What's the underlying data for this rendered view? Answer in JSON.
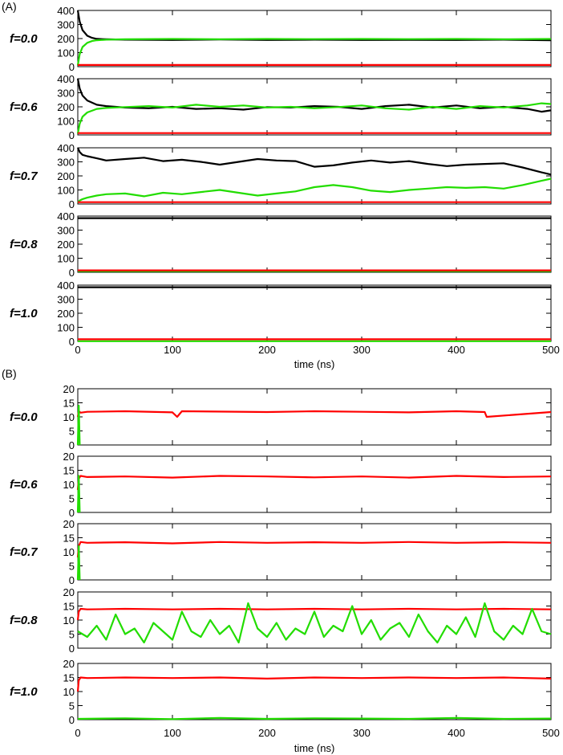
{
  "figure": {
    "panels": [
      {
        "label": "(A)"
      },
      {
        "label": "(B)"
      }
    ]
  },
  "colors": {
    "black_series": "#000000",
    "green_series": "#22dd00",
    "red_series": "#ff0000"
  },
  "chart_data": [
    {
      "panel": "(A)",
      "type": "line",
      "xlabel": "time (ns)",
      "xlim": [
        0,
        500
      ],
      "xticks": [
        0,
        100,
        200,
        300,
        400,
        500
      ],
      "ylim": [
        0,
        400
      ],
      "yticks": [
        0,
        100,
        200,
        300,
        400
      ],
      "grid": false,
      "rows": [
        {
          "label": "f=0.0",
          "series": [
            {
              "color": "black",
              "x": [
                0,
                2,
                5,
                10,
                15,
                20,
                30,
                50,
                100,
                150,
                200,
                250,
                300,
                350,
                400,
                450,
                500
              ],
              "y": [
                400,
                320,
                260,
                220,
                205,
                198,
                195,
                192,
                190,
                193,
                190,
                192,
                190,
                191,
                190,
                192,
                188
              ]
            },
            {
              "color": "green",
              "x": [
                0,
                2,
                5,
                10,
                15,
                20,
                30,
                50,
                100,
                150,
                200,
                250,
                300,
                350,
                400,
                450,
                500
              ],
              "y": [
                10,
                90,
                140,
                170,
                182,
                188,
                192,
                195,
                197,
                195,
                197,
                196,
                197,
                196,
                197,
                195,
                197
              ]
            },
            {
              "color": "red",
              "x": [
                0,
                500
              ],
              "y": [
                12,
                12
              ]
            }
          ]
        },
        {
          "label": "f=0.6",
          "series": [
            {
              "color": "black",
              "x": [
                0,
                2,
                5,
                10,
                20,
                30,
                50,
                75,
                100,
                125,
                150,
                175,
                200,
                225,
                250,
                275,
                300,
                325,
                350,
                375,
                400,
                425,
                450,
                475,
                490,
                500
              ],
              "y": [
                400,
                330,
                280,
                245,
                215,
                205,
                195,
                190,
                200,
                185,
                190,
                180,
                198,
                195,
                205,
                200,
                185,
                205,
                215,
                195,
                210,
                190,
                200,
                185,
                165,
                175
              ]
            },
            {
              "color": "green",
              "x": [
                0,
                2,
                5,
                10,
                20,
                30,
                50,
                75,
                100,
                125,
                150,
                175,
                200,
                225,
                250,
                275,
                300,
                325,
                350,
                375,
                400,
                425,
                450,
                475,
                490,
                500
              ],
              "y": [
                10,
                80,
                130,
                160,
                185,
                192,
                198,
                205,
                195,
                215,
                200,
                210,
                195,
                200,
                190,
                198,
                210,
                190,
                180,
                200,
                185,
                205,
                195,
                210,
                225,
                220
              ]
            },
            {
              "color": "red",
              "x": [
                0,
                500
              ],
              "y": [
                13,
                13
              ]
            }
          ]
        },
        {
          "label": "f=0.7",
          "series": [
            {
              "color": "black",
              "x": [
                0,
                2,
                5,
                10,
                20,
                30,
                50,
                70,
                90,
                110,
                130,
                150,
                170,
                190,
                210,
                230,
                250,
                270,
                290,
                310,
                330,
                350,
                370,
                390,
                410,
                430,
                450,
                470,
                490,
                500
              ],
              "y": [
                400,
                370,
                350,
                340,
                325,
                310,
                320,
                330,
                305,
                315,
                300,
                280,
                300,
                320,
                310,
                305,
                265,
                275,
                295,
                310,
                295,
                305,
                285,
                270,
                280,
                285,
                290,
                260,
                225,
                210
              ]
            },
            {
              "color": "green",
              "x": [
                0,
                2,
                5,
                10,
                20,
                30,
                50,
                70,
                90,
                110,
                130,
                150,
                170,
                190,
                210,
                230,
                250,
                270,
                290,
                310,
                330,
                350,
                370,
                390,
                410,
                430,
                450,
                470,
                490,
                500
              ],
              "y": [
                10,
                25,
                35,
                45,
                60,
                70,
                75,
                55,
                80,
                70,
                85,
                100,
                80,
                60,
                75,
                90,
                120,
                135,
                120,
                95,
                85,
                100,
                110,
                120,
                115,
                120,
                110,
                135,
                165,
                180
              ]
            },
            {
              "color": "red",
              "x": [
                0,
                500
              ],
              "y": [
                13,
                13
              ]
            }
          ]
        },
        {
          "label": "f=0.8",
          "series": [
            {
              "color": "black",
              "x": [
                0,
                500
              ],
              "y": [
                385,
                385
              ]
            },
            {
              "color": "green",
              "x": [
                0,
                500
              ],
              "y": [
                8,
                8
              ]
            },
            {
              "color": "red",
              "x": [
                0,
                500
              ],
              "y": [
                14,
                14
              ]
            }
          ]
        },
        {
          "label": "f=1.0",
          "series": [
            {
              "color": "black",
              "x": [
                0,
                500
              ],
              "y": [
                385,
                385
              ]
            },
            {
              "color": "green",
              "x": [
                0,
                500
              ],
              "y": [
                1,
                1
              ]
            },
            {
              "color": "red",
              "x": [
                0,
                500
              ],
              "y": [
                15,
                15
              ]
            }
          ]
        }
      ]
    },
    {
      "panel": "(B)",
      "type": "line",
      "xlabel": "time (ns)",
      "xlim": [
        0,
        500
      ],
      "xticks": [
        0,
        100,
        200,
        300,
        400,
        500
      ],
      "ylim": [
        0,
        20
      ],
      "yticks": [
        0,
        5,
        10,
        15,
        20
      ],
      "grid": false,
      "rows": [
        {
          "label": "f=0.0",
          "series": [
            {
              "color": "red",
              "x": [
                0,
                1,
                3,
                10,
                50,
                100,
                105,
                110,
                200,
                250,
                300,
                350,
                400,
                430,
                432,
                500
              ],
              "y": [
                10,
                12,
                11.5,
                11.8,
                12,
                11.6,
                10,
                12,
                11.7,
                12,
                11.8,
                11.6,
                12,
                11.7,
                10,
                11.7
              ]
            },
            {
              "color": "green",
              "x": [
                0,
                1,
                2
              ],
              "y": [
                0,
                14,
                0
              ]
            }
          ]
        },
        {
          "label": "f=0.6",
          "series": [
            {
              "color": "red",
              "x": [
                0,
                1,
                3,
                10,
                50,
                100,
                150,
                200,
                250,
                300,
                350,
                400,
                450,
                500
              ],
              "y": [
                8,
                12,
                13,
                12.6,
                12.8,
                12.4,
                13,
                12.8,
                12.5,
                12.8,
                12.4,
                13,
                12.6,
                12.8
              ]
            },
            {
              "color": "green",
              "x": [
                0,
                1,
                2
              ],
              "y": [
                0,
                13,
                0
              ]
            }
          ]
        },
        {
          "label": "f=0.7",
          "series": [
            {
              "color": "red",
              "x": [
                0,
                1,
                3,
                10,
                50,
                100,
                150,
                200,
                250,
                300,
                350,
                400,
                450,
                500
              ],
              "y": [
                8,
                12,
                13.5,
                13.2,
                13.4,
                13,
                13.5,
                13.2,
                13.4,
                13.2,
                13.5,
                13.2,
                13.4,
                13.2
              ]
            },
            {
              "color": "green",
              "x": [
                0,
                1,
                2
              ],
              "y": [
                0,
                12,
                0
              ]
            }
          ]
        },
        {
          "label": "f=0.8",
          "series": [
            {
              "color": "red",
              "x": [
                0,
                1,
                3,
                10,
                50,
                100,
                150,
                200,
                250,
                300,
                350,
                400,
                450,
                500
              ],
              "y": [
                10,
                13,
                14,
                13.8,
                14,
                13.8,
                14,
                13.8,
                14,
                13.8,
                14,
                13.8,
                14,
                13.8
              ]
            },
            {
              "color": "green",
              "x": [
                0,
                10,
                20,
                30,
                40,
                50,
                60,
                70,
                80,
                90,
                100,
                110,
                120,
                130,
                140,
                150,
                160,
                170,
                180,
                190,
                200,
                210,
                220,
                230,
                240,
                250,
                260,
                270,
                280,
                290,
                300,
                310,
                320,
                330,
                340,
                350,
                360,
                370,
                380,
                390,
                400,
                410,
                420,
                430,
                440,
                450,
                460,
                470,
                480,
                490,
                500
              ],
              "y": [
                6,
                4,
                8,
                3,
                12,
                5,
                7,
                2,
                9,
                6,
                3,
                13,
                6,
                4,
                10,
                5,
                8,
                2,
                16,
                7,
                4,
                9,
                3,
                7,
                5,
                13,
                4,
                8,
                6,
                15,
                5,
                10,
                3,
                7,
                9,
                4,
                12,
                6,
                2,
                8,
                5,
                11,
                4,
                16,
                6,
                3,
                8,
                5,
                14,
                6,
                5
              ]
            }
          ]
        },
        {
          "label": "f=1.0",
          "series": [
            {
              "color": "red",
              "x": [
                0,
                1,
                3,
                10,
                50,
                100,
                150,
                200,
                250,
                300,
                350,
                400,
                450,
                500
              ],
              "y": [
                10,
                14,
                15,
                14.8,
                15,
                14.8,
                15,
                14.6,
                15,
                14.8,
                15,
                14.8,
                15,
                14.6
              ]
            },
            {
              "color": "green",
              "x": [
                0,
                50,
                100,
                150,
                200,
                250,
                300,
                350,
                400,
                450,
                500
              ],
              "y": [
                0.3,
                0.5,
                0.2,
                0.6,
                0.3,
                0.5,
                0.4,
                0.3,
                0.6,
                0.3,
                0.4
              ]
            }
          ]
        }
      ]
    }
  ]
}
